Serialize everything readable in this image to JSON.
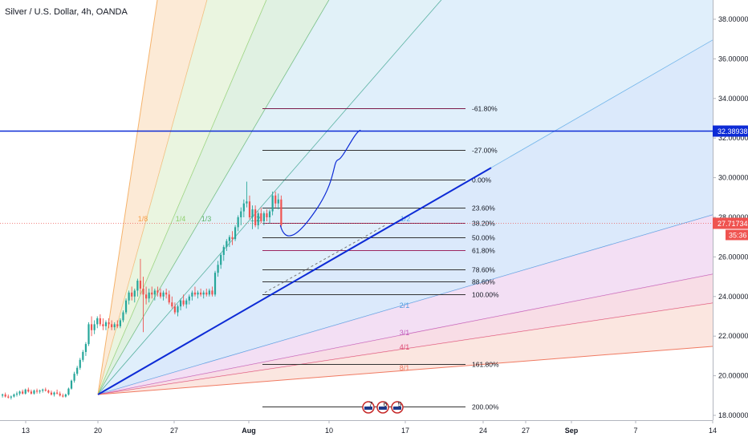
{
  "header": {
    "title": "Silver / U.S. Dollar, 4h, OANDA"
  },
  "chart_data": {
    "type": "candlestick",
    "title": "Silver / U.S. Dollar, 4h, OANDA",
    "x_ticks": [
      "13",
      "20",
      "27",
      "Aug",
      "10",
      "17",
      "24",
      "27",
      "Sep",
      "7",
      "14"
    ],
    "y_ticks": [
      "18.00000",
      "20.00000",
      "22.00000",
      "24.00000",
      "26.00000",
      "28.00000",
      "30.00000",
      "32.00000",
      "34.00000",
      "36.00000",
      "38.00000"
    ],
    "ylim": [
      17.7,
      39.0
    ],
    "grid": false,
    "price_line": {
      "value": "32.38938",
      "label": "32.38938",
      "color": "#0d2bd6"
    },
    "current_price": {
      "value": "27.71734",
      "label": "27.71734",
      "countdown": "35:36",
      "color": "#ef5350"
    },
    "fib_levels": [
      {
        "label": "-61.80%",
        "price": 33.5
      },
      {
        "label": "-27.00%",
        "price": 31.4
      },
      {
        "label": "0.00%",
        "price": 29.9
      },
      {
        "label": "23.60%",
        "price": 28.5
      },
      {
        "label": "38.20%",
        "price": 27.7
      },
      {
        "label": "50.00%",
        "price": 27.0
      },
      {
        "label": "61.80%",
        "price": 26.35
      },
      {
        "label": "78.60%",
        "price": 25.35
      },
      {
        "label": "88.60%",
        "price": 24.75
      },
      {
        "label": "100.00%",
        "price": 24.1
      },
      {
        "label": "161.80%",
        "price": 20.6
      },
      {
        "label": "200.00%",
        "price": 18.45
      }
    ],
    "gann_labels": [
      "1/8",
      "1/4",
      "1/3",
      "1/2",
      "1/2",
      "2/1",
      "3/1",
      "4/1",
      "8/1"
    ],
    "event_markers": [
      "7",
      "6",
      "5"
    ],
    "candles": [
      [
        19.0,
        19.1,
        18.9,
        19.05
      ],
      [
        19.05,
        19.15,
        18.9,
        18.95
      ],
      [
        18.95,
        19.05,
        18.85,
        18.9
      ],
      [
        18.9,
        19.0,
        18.8,
        18.95
      ],
      [
        18.95,
        19.1,
        18.9,
        19.05
      ],
      [
        19.05,
        19.2,
        18.95,
        19.1
      ],
      [
        19.1,
        19.25,
        19.0,
        19.2
      ],
      [
        19.2,
        19.3,
        19.05,
        19.1
      ],
      [
        19.1,
        19.35,
        19.05,
        19.3
      ],
      [
        19.3,
        19.4,
        19.15,
        19.2
      ],
      [
        19.2,
        19.3,
        19.05,
        19.1
      ],
      [
        19.1,
        19.3,
        19.05,
        19.25
      ],
      [
        19.25,
        19.35,
        19.1,
        19.2
      ],
      [
        19.2,
        19.3,
        19.1,
        19.25
      ],
      [
        19.25,
        19.35,
        19.15,
        19.3
      ],
      [
        19.3,
        19.4,
        19.2,
        19.25
      ],
      [
        19.25,
        19.3,
        19.1,
        19.15
      ],
      [
        19.15,
        19.25,
        19.0,
        19.05
      ],
      [
        19.05,
        19.2,
        18.95,
        19.15
      ],
      [
        19.15,
        19.3,
        19.05,
        19.1
      ],
      [
        19.1,
        19.2,
        18.95,
        19.0
      ],
      [
        19.0,
        19.1,
        18.9,
        18.95
      ],
      [
        18.95,
        19.1,
        18.9,
        19.05
      ],
      [
        19.05,
        19.4,
        19.0,
        19.35
      ],
      [
        19.35,
        19.8,
        19.3,
        19.75
      ],
      [
        19.75,
        20.2,
        19.65,
        20.1
      ],
      [
        20.1,
        20.5,
        20.0,
        20.4
      ],
      [
        20.4,
        20.9,
        20.3,
        20.8
      ],
      [
        20.8,
        21.3,
        20.7,
        21.2
      ],
      [
        21.2,
        21.7,
        21.0,
        21.6
      ],
      [
        21.6,
        22.7,
        21.5,
        22.6
      ],
      [
        22.6,
        23.0,
        22.0,
        22.3
      ],
      [
        22.3,
        22.8,
        22.1,
        22.6
      ],
      [
        22.6,
        23.0,
        22.4,
        22.9
      ],
      [
        22.9,
        23.1,
        22.5,
        22.6
      ],
      [
        22.6,
        22.9,
        22.3,
        22.5
      ],
      [
        22.5,
        22.8,
        22.3,
        22.7
      ],
      [
        22.7,
        22.9,
        22.4,
        22.6
      ],
      [
        22.6,
        22.8,
        22.3,
        22.45
      ],
      [
        22.45,
        22.7,
        22.3,
        22.6
      ],
      [
        22.6,
        22.8,
        22.4,
        22.5
      ],
      [
        22.5,
        22.9,
        22.4,
        22.8
      ],
      [
        22.8,
        23.3,
        22.7,
        23.2
      ],
      [
        23.2,
        23.9,
        23.1,
        23.8
      ],
      [
        23.8,
        24.3,
        23.6,
        24.2
      ],
      [
        24.2,
        24.5,
        23.8,
        24.0
      ],
      [
        24.0,
        24.4,
        23.7,
        24.3
      ],
      [
        24.3,
        24.9,
        24.0,
        24.8
      ],
      [
        24.8,
        25.9,
        24.1,
        24.4
      ],
      [
        24.4,
        25.0,
        22.2,
        24.1
      ],
      [
        24.1,
        24.5,
        23.6,
        23.9
      ],
      [
        23.9,
        24.4,
        23.7,
        24.2
      ],
      [
        24.2,
        24.5,
        23.9,
        24.1
      ],
      [
        24.1,
        24.4,
        23.8,
        24.3
      ],
      [
        24.3,
        24.5,
        24.0,
        24.2
      ],
      [
        24.2,
        24.4,
        23.9,
        24.0
      ],
      [
        24.0,
        24.3,
        23.8,
        24.2
      ],
      [
        24.2,
        24.4,
        23.9,
        24.1
      ],
      [
        24.1,
        24.3,
        23.6,
        23.7
      ],
      [
        23.7,
        24.0,
        23.4,
        23.5
      ],
      [
        23.5,
        23.7,
        23.1,
        23.2
      ],
      [
        23.2,
        23.6,
        23.0,
        23.5
      ],
      [
        23.5,
        23.9,
        23.3,
        23.8
      ],
      [
        23.8,
        24.1,
        23.5,
        23.6
      ],
      [
        23.6,
        23.9,
        23.4,
        23.8
      ],
      [
        23.8,
        24.1,
        23.6,
        24.0
      ],
      [
        24.0,
        24.3,
        23.8,
        24.2
      ],
      [
        24.2,
        24.5,
        24.0,
        24.1
      ],
      [
        24.1,
        24.3,
        23.9,
        24.2
      ],
      [
        24.2,
        24.4,
        24.0,
        24.1
      ],
      [
        24.1,
        24.3,
        23.9,
        24.2
      ],
      [
        24.2,
        24.4,
        24.0,
        24.1
      ],
      [
        24.1,
        24.4,
        24.0,
        24.3
      ],
      [
        24.3,
        24.5,
        24.0,
        24.1
      ],
      [
        24.1,
        25.3,
        24.0,
        25.2
      ],
      [
        25.2,
        25.8,
        25.0,
        25.6
      ],
      [
        25.6,
        26.2,
        25.4,
        26.1
      ],
      [
        26.1,
        26.6,
        25.8,
        26.5
      ],
      [
        26.5,
        26.9,
        26.3,
        26.8
      ],
      [
        26.8,
        27.1,
        26.5,
        27.0
      ],
      [
        27.0,
        27.3,
        26.6,
        26.9
      ],
      [
        26.9,
        27.6,
        26.8,
        27.5
      ],
      [
        27.5,
        28.1,
        27.3,
        28.0
      ],
      [
        28.0,
        28.5,
        27.6,
        28.3
      ],
      [
        28.3,
        28.9,
        28.0,
        28.7
      ],
      [
        28.7,
        29.8,
        28.5,
        28.8
      ],
      [
        28.8,
        29.1,
        27.9,
        28.0
      ],
      [
        28.0,
        28.6,
        27.4,
        28.4
      ],
      [
        28.4,
        28.6,
        27.5,
        27.6
      ],
      [
        27.6,
        28.3,
        27.4,
        28.2
      ],
      [
        28.2,
        28.5,
        27.7,
        27.8
      ],
      [
        27.8,
        28.3,
        27.6,
        28.2
      ],
      [
        28.2,
        28.4,
        27.8,
        28.0
      ],
      [
        28.0,
        28.4,
        27.7,
        28.3
      ],
      [
        28.3,
        29.3,
        28.1,
        29.1
      ],
      [
        29.1,
        29.3,
        28.5,
        28.7
      ],
      [
        28.7,
        29.2,
        28.4,
        28.9
      ],
      [
        28.9,
        29.1,
        27.5,
        27.6
      ]
    ],
    "projection_path": [
      [
        27.6,
        27.0
      ],
      [
        27.1,
        29.0
      ],
      [
        29.4,
        30.8
      ],
      [
        32.4,
        32.4
      ]
    ]
  },
  "colors": {
    "up": "#26a69a",
    "down": "#ef5350",
    "accent": "#0d2bd6"
  }
}
